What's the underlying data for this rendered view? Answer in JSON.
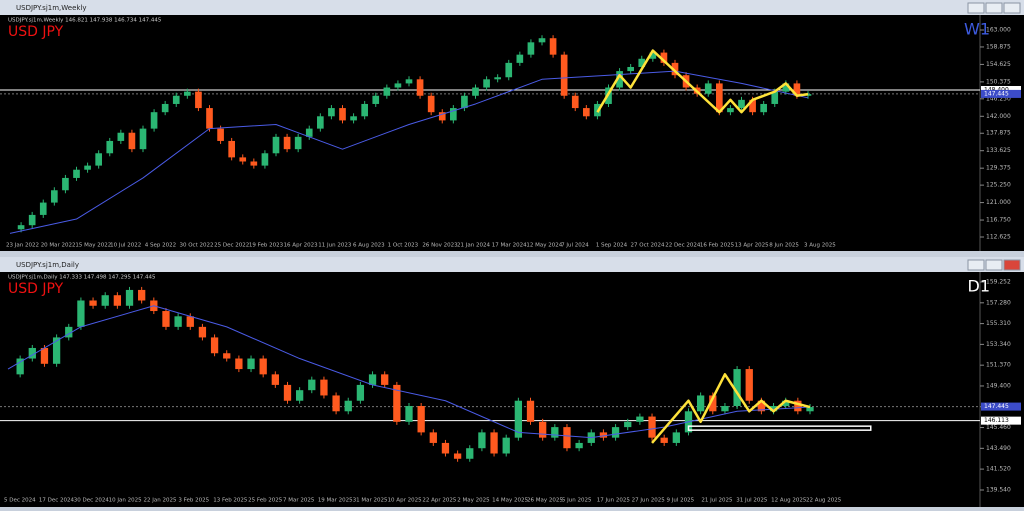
{
  "windows": [
    {
      "title": "USDJPY.sj1m,Weekly",
      "chart_data": {
        "type": "candlestick",
        "info": "USDJPY.sj1m,Weekly  146.821 147.938 146.734 147.445",
        "symbol_label": "USD JPY",
        "timeframe_label": "W1",
        "x_labels": [
          "23 Jan 2022",
          "20 Mar 2022",
          "15 May 2022",
          "10 Jul 2022",
          "4 Sep 2022",
          "30 Oct 2022",
          "25 Dec 2022",
          "19 Feb 2023",
          "16 Apr 2023",
          "11 Jun 2023",
          "6 Aug 2023",
          "1 Oct 2023",
          "26 Nov 2023",
          "21 Jan 2024",
          "17 Mar 2024",
          "12 May 2024",
          "7 Jul 2024",
          "1 Sep 2024",
          "27 Oct 2024",
          "22 Dec 2024",
          "16 Feb 2025",
          "13 Apr 2025",
          "8 Jun 2025",
          "3 Aug 2025"
        ],
        "ylim": [
          112.625,
          163.0
        ],
        "yticks": [
          {
            "value": 163.0,
            "label": "163.000"
          },
          {
            "value": 158.875,
            "label": "158.875"
          },
          {
            "value": 154.625,
            "label": "154.625"
          },
          {
            "value": 150.375,
            "label": "150.375"
          },
          {
            "value": 146.25,
            "label": "146.250"
          },
          {
            "value": 142.0,
            "label": "142.000"
          },
          {
            "value": 137.875,
            "label": "137.875"
          },
          {
            "value": 133.625,
            "label": "133.625"
          },
          {
            "value": 129.375,
            "label": "129.375"
          },
          {
            "value": 125.25,
            "label": "125.250"
          },
          {
            "value": 121.0,
            "label": "121.000"
          },
          {
            "value": 116.75,
            "label": "116.750"
          },
          {
            "value": 112.625,
            "label": "112.625"
          }
        ],
        "closes": [
          114.5,
          115.5,
          118,
          121,
          124,
          127,
          129,
          130,
          133,
          136,
          138,
          134,
          139,
          143,
          145,
          147,
          148,
          144,
          139,
          136,
          132,
          131,
          130,
          133,
          137,
          134,
          137,
          139,
          142,
          144,
          141,
          142,
          145,
          147,
          149,
          150,
          151,
          147,
          143,
          141,
          144,
          147,
          149,
          151,
          151.5,
          155,
          157,
          160,
          161,
          157,
          147,
          144,
          142,
          145,
          149,
          153,
          154,
          156,
          157.5,
          155,
          152,
          149,
          147.5,
          150,
          143,
          144,
          146,
          143,
          145,
          148,
          150,
          147,
          147.4
        ],
        "up_color": "#2bb673",
        "down_color": "#ff5a1f",
        "ma": {
          "x": [
            0,
            6,
            12,
            18,
            24,
            30,
            36,
            42,
            48,
            54,
            60,
            66,
            72
          ],
          "values": [
            113.5,
            117,
            127,
            139,
            140,
            134,
            140,
            145,
            151,
            152,
            153,
            150,
            146.5
          ],
          "color": "#4a5be6"
        },
        "zigzag": {
          "x": [
            53,
            55,
            56,
            58,
            62,
            64,
            65,
            66,
            67,
            69,
            70,
            71,
            72
          ],
          "values": [
            143,
            152,
            149,
            158,
            148,
            143,
            146,
            143,
            146,
            148,
            150,
            147,
            147.4
          ],
          "color": "#ffe23a"
        },
        "price_line": {
          "value": 147.445,
          "label": "147.445"
        },
        "level_line": {
          "value": 148.4,
          "label": "148.400"
        }
      }
    },
    {
      "title": "USDJPY.sj1m,Daily",
      "chart_data": {
        "type": "candlestick",
        "info": "USDJPY.sj1m,Daily  147.333 147.498 147.295 147.445",
        "symbol_label": "USD JPY",
        "timeframe_label": "D1",
        "x_labels": [
          "5 Dec 2024",
          "17 Dec 2024",
          "30 Dec 2024",
          "10 Jan 2025",
          "22 Jan 2025",
          "3 Feb 2025",
          "13 Feb 2025",
          "25 Feb 2025",
          "7 Mar 2025",
          "19 Mar 2025",
          "31 Mar 2025",
          "10 Apr 2025",
          "22 Apr 2025",
          "2 May 2025",
          "14 May 2025",
          "26 May 2025",
          "5 Jun 2025",
          "17 Jun 2025",
          "27 Jun 2025",
          "9 Jul 2025",
          "21 Jul 2025",
          "31 Jul 2025",
          "12 Aug 2025",
          "22 Aug 2025"
        ],
        "ylim": [
          139.54,
          159.252
        ],
        "yticks": [
          {
            "value": 159.252,
            "label": "159.252"
          },
          {
            "value": 157.28,
            "label": "157.280"
          },
          {
            "value": 155.31,
            "label": "155.310"
          },
          {
            "value": 153.34,
            "label": "153.340"
          },
          {
            "value": 151.37,
            "label": "151.370"
          },
          {
            "value": 149.4,
            "label": "149.400"
          },
          {
            "value": 147.43,
            "label": "147.430"
          },
          {
            "value": 145.46,
            "label": "145.460"
          },
          {
            "value": 143.49,
            "label": "143.490"
          },
          {
            "value": 141.52,
            "label": "141.520"
          },
          {
            "value": 139.54,
            "label": "139.540"
          }
        ],
        "closes": [
          150.5,
          152,
          153,
          151.5,
          154,
          155,
          157.5,
          157,
          158,
          157,
          158.5,
          157.5,
          156.5,
          155,
          156,
          155,
          154,
          152.5,
          152,
          151,
          152,
          150.5,
          149.5,
          148,
          149,
          150,
          148.5,
          147,
          148,
          149.5,
          150.5,
          149.5,
          146,
          147.5,
          145,
          144,
          143,
          142.5,
          143.5,
          145,
          143,
          144.5,
          148,
          146,
          144.5,
          145.5,
          143.5,
          144,
          145,
          144.5,
          145.5,
          146,
          146.5,
          144.5,
          144,
          145,
          147,
          148.5,
          147,
          147.5,
          151,
          148,
          147,
          147.5,
          148,
          147,
          147.4
        ],
        "up_color": "#2bb673",
        "down_color": "#ff5a1f",
        "ma": {
          "x": [
            0,
            6,
            12,
            18,
            24,
            30,
            36,
            42,
            48,
            54,
            60,
            66
          ],
          "values": [
            151,
            155,
            157,
            155,
            152,
            149.5,
            148,
            145,
            144.5,
            145.5,
            147,
            147.4
          ],
          "color": "#4a5be6"
        },
        "zigzag": {
          "x": [
            53,
            56,
            57,
            59,
            61,
            62,
            63,
            64,
            66
          ],
          "values": [
            144,
            148,
            146,
            150.5,
            147,
            148,
            147,
            148,
            147.4
          ],
          "color": "#ffe23a"
        },
        "price_line": {
          "value": 147.445,
          "label": "147.445"
        },
        "level_line": {
          "value": 146.113,
          "label": "146.113"
        },
        "box": {
          "x": [
            56,
            71
          ],
          "value": 145.4
        }
      }
    }
  ]
}
